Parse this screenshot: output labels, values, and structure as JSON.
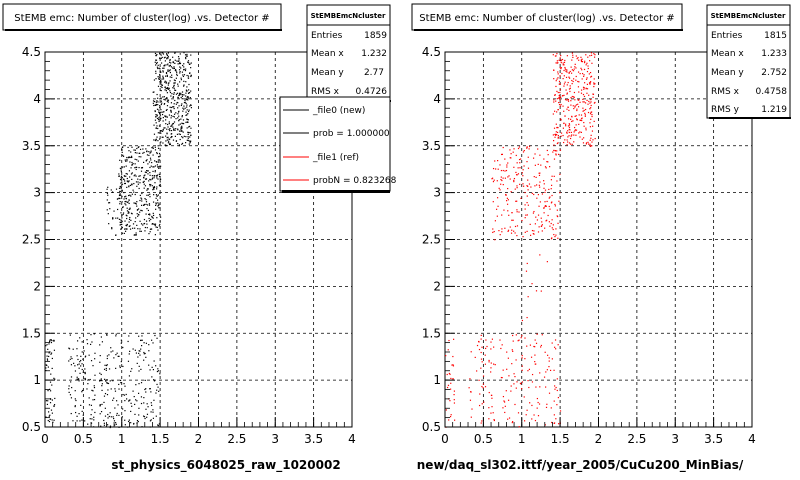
{
  "panels": [
    {
      "title": "StEMB emc: Number of cluster(log) .vs. Detector #",
      "stats_title": "StEMBEmcNcluster",
      "stats": [
        {
          "label": "Entries",
          "value": "1859"
        },
        {
          "label": "Mean x",
          "value": "1.232"
        },
        {
          "label": "Mean y",
          "value": "2.77"
        },
        {
          "label": "RMS x",
          "value": "0.4726"
        }
      ],
      "legend": [
        {
          "label": "_file0 (new)",
          "color": "#000000"
        },
        {
          "label": "prob = 1.000000",
          "color": "#000000"
        },
        {
          "label": "_file1 (ref)",
          "color": "#ff0000"
        },
        {
          "label": "probN = 0.823268",
          "color": "#ff0000"
        }
      ],
      "xlabel": "st_physics_6048025_raw_1020002",
      "marker_color": "#000000"
    },
    {
      "title": "StEMB emc: Number of cluster(log) .vs. Detector #",
      "stats_title": "StEMBEmcNcluster",
      "stats": [
        {
          "label": "Entries",
          "value": "1815"
        },
        {
          "label": "Mean x",
          "value": "1.233"
        },
        {
          "label": "Mean y",
          "value": "2.752"
        },
        {
          "label": "RMS x",
          "value": "0.4758"
        },
        {
          "label": "RMS y",
          "value": "1.219"
        }
      ],
      "xlabel": "new/daq_sl302.ittf/year_2005/CuCu200_MinBias/",
      "marker_color": "#ff0000"
    }
  ],
  "chart_data": [
    {
      "type": "scatter",
      "title": "StEMB emc: Number of cluster(log) .vs. Detector #",
      "xlabel": "st_physics_6048025_raw_1020002",
      "ylabel": "",
      "xlim": [
        0,
        4
      ],
      "ylim": [
        0.5,
        4.5
      ],
      "xticks": [
        "0",
        "0.5",
        "1",
        "1.5",
        "2",
        "2.5",
        "3",
        "3.5",
        "4"
      ],
      "yticks": [
        "0.5",
        "1",
        "1.5",
        "2",
        "2.5",
        "3",
        "3.5",
        "4",
        "4.5"
      ],
      "grid": true,
      "color": "#000000",
      "clusters": [
        {
          "x_range": [
            0.0,
            0.12
          ],
          "y_range": [
            0.5,
            1.45
          ],
          "count": 60
        },
        {
          "x_range": [
            0.3,
            0.65
          ],
          "y_range": [
            0.5,
            1.5
          ],
          "count": 110
        },
        {
          "x_range": [
            0.7,
            1.5
          ],
          "y_range": [
            0.5,
            1.5
          ],
          "count": 230
        },
        {
          "x_range": [
            0.8,
            1.0
          ],
          "y_range": [
            2.55,
            3.1
          ],
          "count": 40
        },
        {
          "x_range": [
            0.95,
            1.5
          ],
          "y_range": [
            2.55,
            3.5
          ],
          "count": 420
        },
        {
          "x_range": [
            1.4,
            1.9
          ],
          "y_range": [
            3.5,
            4.5
          ],
          "count": 520
        }
      ]
    },
    {
      "type": "scatter",
      "title": "StEMB emc: Number of cluster(log) .vs. Detector #",
      "xlabel": "new/daq_sl302.ittf/year_2005/CuCu200_MinBias/",
      "ylabel": "",
      "xlim": [
        0,
        4
      ],
      "ylim": [
        0.5,
        4.5
      ],
      "xticks": [
        "0",
        "0.5",
        "1",
        "1.5",
        "2",
        "2.5",
        "3",
        "3.5",
        "4"
      ],
      "yticks": [
        "0.5",
        "1",
        "1.5",
        "2",
        "2.5",
        "3",
        "3.5",
        "4",
        "4.5"
      ],
      "grid": true,
      "color": "#ff0000",
      "clusters": [
        {
          "x_range": [
            0.0,
            0.12
          ],
          "y_range": [
            0.5,
            1.45
          ],
          "count": 30
        },
        {
          "x_range": [
            0.3,
            0.65
          ],
          "y_range": [
            0.5,
            1.5
          ],
          "count": 60
        },
        {
          "x_range": [
            0.7,
            1.5
          ],
          "y_range": [
            0.5,
            1.5
          ],
          "count": 130
        },
        {
          "x_range": [
            0.6,
            1.5
          ],
          "y_range": [
            2.5,
            3.5
          ],
          "count": 260
        },
        {
          "x_range": [
            1.0,
            1.6
          ],
          "y_range": [
            1.6,
            2.4
          ],
          "count": 10
        },
        {
          "x_range": [
            1.4,
            1.95
          ],
          "y_range": [
            3.5,
            4.5
          ],
          "count": 360
        }
      ]
    }
  ]
}
